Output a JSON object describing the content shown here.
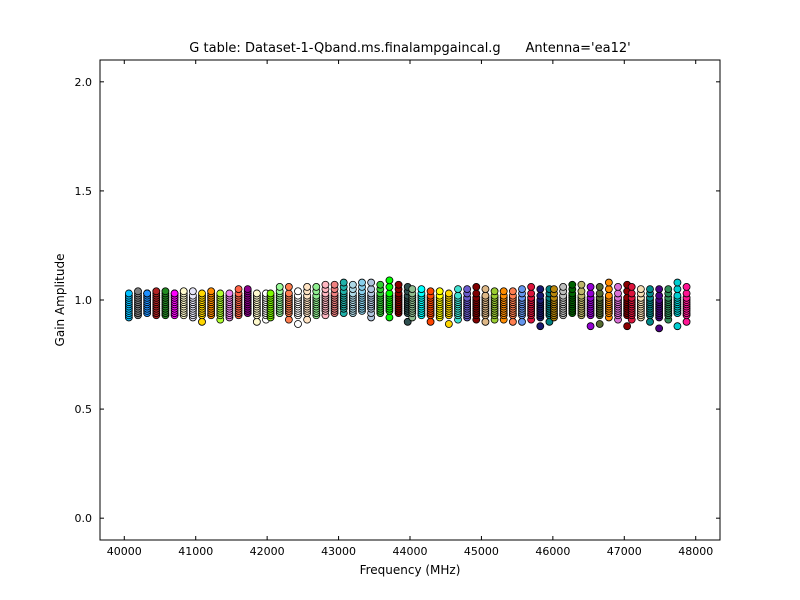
{
  "chart_data": {
    "type": "scatter",
    "title": "G table: Dataset-1-Qband.ms.finalampgaincal.g      Antenna='ea12'",
    "xlabel": "Frequency (MHz)",
    "ylabel": "Gain Amplitude",
    "xlim": [
      39660,
      48340
    ],
    "ylim": [
      -0.1,
      2.1
    ],
    "xticks": [
      40000,
      41000,
      42000,
      43000,
      44000,
      45000,
      46000,
      47000,
      48000
    ],
    "xtick_labels": [
      "40000",
      "41000",
      "42000",
      "43000",
      "44000",
      "45000",
      "46000",
      "47000",
      "48000"
    ],
    "yticks": [
      0.0,
      0.5,
      1.0,
      1.5,
      2.0
    ],
    "ytick_labels": [
      "0.0",
      "0.5",
      "1.0",
      "1.5",
      "2.0"
    ],
    "grid": false,
    "legend": "none",
    "marker_radius_hint": "small circles with black edges",
    "channels_per_spw": 12,
    "series": [
      {
        "x": 40064,
        "color": "#00bfff",
        "y": [
          0.92,
          0.93,
          0.94,
          0.95,
          0.96,
          0.97,
          0.98,
          0.99,
          1.0,
          1.01,
          1.02,
          1.03
        ]
      },
      {
        "x": 40192,
        "color": "#808080",
        "y": [
          0.93,
          0.94,
          0.95,
          0.96,
          0.97,
          0.98,
          0.99,
          1.0,
          1.01,
          1.02,
          1.03,
          1.04
        ]
      },
      {
        "x": 40320,
        "color": "#1e90ff",
        "y": [
          0.94,
          0.95,
          0.96,
          0.97,
          0.98,
          0.99,
          1.0,
          1.01,
          1.02,
          1.03,
          1.03,
          1.03
        ]
      },
      {
        "x": 40448,
        "color": "#b22222",
        "y": [
          0.93,
          0.94,
          0.95,
          0.96,
          0.97,
          0.98,
          0.99,
          1.0,
          1.01,
          1.02,
          1.03,
          1.04
        ]
      },
      {
        "x": 40576,
        "color": "#228b22",
        "y": [
          0.93,
          0.94,
          0.95,
          0.96,
          0.97,
          0.98,
          0.99,
          1.0,
          1.01,
          1.02,
          1.03,
          1.04
        ]
      },
      {
        "x": 40704,
        "color": "#ff00ff",
        "y": [
          0.93,
          0.94,
          0.95,
          0.96,
          0.97,
          0.98,
          0.99,
          1.0,
          1.01,
          1.02,
          1.03,
          1.03
        ]
      },
      {
        "x": 40832,
        "color": "#fffacd",
        "y": [
          0.93,
          0.94,
          0.95,
          0.96,
          0.97,
          0.98,
          0.99,
          1.0,
          1.01,
          1.02,
          1.03,
          1.04
        ]
      },
      {
        "x": 40960,
        "color": "#e6e6fa",
        "y": [
          0.92,
          0.93,
          0.94,
          0.95,
          0.96,
          0.97,
          0.98,
          0.99,
          1.0,
          1.01,
          1.02,
          1.04
        ]
      },
      {
        "x": 41088,
        "color": "#ffd700",
        "y": [
          0.9,
          0.93,
          0.94,
          0.95,
          0.96,
          0.97,
          0.98,
          0.99,
          1.0,
          1.01,
          1.02,
          1.03
        ]
      },
      {
        "x": 41216,
        "color": "#ff8c00",
        "y": [
          0.93,
          0.94,
          0.95,
          0.96,
          0.97,
          0.98,
          0.99,
          1.0,
          1.01,
          1.02,
          1.03,
          1.04
        ]
      },
      {
        "x": 41344,
        "color": "#adff2f",
        "y": [
          0.91,
          0.93,
          0.94,
          0.95,
          0.96,
          0.97,
          0.98,
          0.99,
          1.0,
          1.01,
          1.02,
          1.03
        ]
      },
      {
        "x": 41472,
        "color": "#ee82ee",
        "y": [
          0.92,
          0.93,
          0.94,
          0.95,
          0.96,
          0.97,
          0.98,
          0.99,
          1.0,
          1.01,
          1.02,
          1.03
        ]
      },
      {
        "x": 41600,
        "color": "#ff6347",
        "y": [
          0.93,
          0.94,
          0.95,
          0.96,
          0.97,
          0.98,
          0.99,
          1.0,
          1.01,
          1.02,
          1.03,
          1.05
        ]
      },
      {
        "x": 41728,
        "color": "#8b008b",
        "y": [
          0.94,
          0.95,
          0.96,
          0.97,
          0.98,
          0.99,
          1.0,
          1.01,
          1.02,
          1.03,
          1.04,
          1.05
        ]
      },
      {
        "x": 41856,
        "color": "#fffacd",
        "y": [
          0.9,
          0.93,
          0.94,
          0.95,
          0.96,
          0.97,
          0.98,
          0.99,
          1.0,
          1.01,
          1.02,
          1.03
        ]
      },
      {
        "x": 41984,
        "color": "#ffffff",
        "y": [
          0.91,
          0.93,
          0.94,
          0.95,
          0.96,
          0.97,
          0.98,
          0.99,
          1.0,
          1.01,
          1.02,
          1.03
        ]
      },
      {
        "x": 42048,
        "color": "#7cfc00",
        "y": [
          0.92,
          0.93,
          0.94,
          0.95,
          0.96,
          0.97,
          0.98,
          0.99,
          1.0,
          1.01,
          1.02,
          1.03
        ]
      },
      {
        "x": 42176,
        "color": "#98fb98",
        "y": [
          0.94,
          0.95,
          0.96,
          0.97,
          0.98,
          0.99,
          1.0,
          1.01,
          1.02,
          1.03,
          1.04,
          1.06
        ]
      },
      {
        "x": 42304,
        "color": "#ff7f50",
        "y": [
          0.91,
          0.94,
          0.95,
          0.96,
          0.97,
          0.98,
          0.99,
          1.0,
          1.01,
          1.02,
          1.03,
          1.06
        ]
      },
      {
        "x": 42432,
        "color": "#ffffff",
        "y": [
          0.89,
          0.93,
          0.94,
          0.95,
          0.96,
          0.97,
          0.98,
          0.99,
          1.0,
          1.01,
          1.02,
          1.04
        ]
      },
      {
        "x": 42560,
        "color": "#ffe4c4",
        "y": [
          0.91,
          0.94,
          0.95,
          0.96,
          0.97,
          0.98,
          0.99,
          1.0,
          1.01,
          1.02,
          1.04,
          1.06
        ]
      },
      {
        "x": 42688,
        "color": "#90ee90",
        "y": [
          0.93,
          0.94,
          0.95,
          0.96,
          0.97,
          0.98,
          0.99,
          1.0,
          1.01,
          1.02,
          1.04,
          1.06
        ]
      },
      {
        "x": 42816,
        "color": "#ffb6c1",
        "y": [
          0.93,
          0.95,
          0.96,
          0.97,
          0.98,
          0.99,
          1.0,
          1.01,
          1.02,
          1.03,
          1.05,
          1.07
        ]
      },
      {
        "x": 42944,
        "color": "#f08080",
        "y": [
          0.94,
          0.95,
          0.96,
          0.97,
          0.98,
          0.99,
          1.0,
          1.01,
          1.02,
          1.03,
          1.05,
          1.07
        ]
      },
      {
        "x": 43072,
        "color": "#20b2aa",
        "y": [
          0.94,
          0.96,
          0.97,
          0.98,
          0.99,
          1.0,
          1.01,
          1.02,
          1.03,
          1.04,
          1.06,
          1.08
        ]
      },
      {
        "x": 43200,
        "color": "#add8e6",
        "y": [
          0.94,
          0.95,
          0.96,
          0.97,
          0.98,
          0.99,
          1.0,
          1.01,
          1.02,
          1.03,
          1.05,
          1.07
        ]
      },
      {
        "x": 43328,
        "color": "#87ceeb",
        "y": [
          0.95,
          0.96,
          0.97,
          0.98,
          0.99,
          1.0,
          1.01,
          1.02,
          1.03,
          1.04,
          1.06,
          1.08
        ]
      },
      {
        "x": 43456,
        "color": "#b0c4de",
        "y": [
          0.92,
          0.94,
          0.96,
          0.97,
          0.98,
          0.99,
          1.0,
          1.01,
          1.02,
          1.03,
          1.05,
          1.08
        ]
      },
      {
        "x": 43584,
        "color": "#32cd32",
        "y": [
          0.94,
          0.95,
          0.96,
          0.97,
          0.98,
          0.99,
          1.0,
          1.01,
          1.02,
          1.03,
          1.05,
          1.07
        ]
      },
      {
        "x": 43712,
        "color": "#00ff00",
        "y": [
          0.92,
          0.95,
          0.96,
          0.97,
          0.98,
          0.99,
          1.0,
          1.01,
          1.02,
          1.03,
          1.06,
          1.09
        ]
      },
      {
        "x": 43840,
        "color": "#8b0000",
        "y": [
          0.94,
          0.95,
          0.96,
          0.97,
          0.98,
          0.99,
          1.0,
          1.01,
          1.02,
          1.03,
          1.05,
          1.07
        ]
      },
      {
        "x": 43968,
        "color": "#2f4f4f",
        "y": [
          0.9,
          0.94,
          0.95,
          0.96,
          0.97,
          0.98,
          0.99,
          1.0,
          1.01,
          1.02,
          1.04,
          1.06
        ]
      },
      {
        "x": 44032,
        "color": "#8fbc8f",
        "y": [
          0.92,
          0.94,
          0.95,
          0.96,
          0.97,
          0.98,
          0.99,
          1.0,
          1.01,
          1.02,
          1.03,
          1.05
        ]
      },
      {
        "x": 44160,
        "color": "#00ffff",
        "y": [
          0.93,
          0.94,
          0.95,
          0.96,
          0.97,
          0.98,
          0.99,
          1.0,
          1.01,
          1.02,
          1.03,
          1.05
        ]
      },
      {
        "x": 44288,
        "color": "#ff4500",
        "y": [
          0.9,
          0.93,
          0.94,
          0.95,
          0.96,
          0.97,
          0.98,
          0.99,
          1.0,
          1.01,
          1.02,
          1.04
        ]
      },
      {
        "x": 44416,
        "color": "#ffff00",
        "y": [
          0.92,
          0.93,
          0.94,
          0.95,
          0.96,
          0.97,
          0.98,
          0.99,
          1.0,
          1.01,
          1.02,
          1.04
        ]
      },
      {
        "x": 44544,
        "color": "#ffd700",
        "y": [
          0.89,
          0.93,
          0.94,
          0.95,
          0.96,
          0.97,
          0.98,
          0.99,
          1.0,
          1.01,
          1.02,
          1.03
        ]
      },
      {
        "x": 44672,
        "color": "#40e0d0",
        "y": [
          0.91,
          0.93,
          0.94,
          0.95,
          0.96,
          0.97,
          0.98,
          0.99,
          1.0,
          1.01,
          1.02,
          1.05
        ]
      },
      {
        "x": 44800,
        "color": "#6a5acd",
        "y": [
          0.92,
          0.93,
          0.94,
          0.95,
          0.96,
          0.97,
          0.98,
          0.99,
          1.0,
          1.01,
          1.03,
          1.05
        ]
      },
      {
        "x": 44928,
        "color": "#800000",
        "y": [
          0.91,
          0.93,
          0.94,
          0.95,
          0.96,
          0.97,
          0.98,
          0.99,
          1.0,
          1.01,
          1.03,
          1.06
        ]
      },
      {
        "x": 45056,
        "color": "#deb887",
        "y": [
          0.9,
          0.93,
          0.94,
          0.95,
          0.96,
          0.97,
          0.98,
          0.99,
          1.0,
          1.01,
          1.02,
          1.05
        ]
      },
      {
        "x": 45184,
        "color": "#9acd32",
        "y": [
          0.91,
          0.93,
          0.94,
          0.95,
          0.96,
          0.97,
          0.98,
          0.99,
          1.0,
          1.01,
          1.02,
          1.04
        ]
      },
      {
        "x": 45312,
        "color": "#ff8c00",
        "y": [
          0.91,
          0.93,
          0.94,
          0.95,
          0.96,
          0.97,
          0.98,
          0.99,
          1.0,
          1.01,
          1.02,
          1.04
        ]
      },
      {
        "x": 45440,
        "color": "#ff7f50",
        "y": [
          0.9,
          0.93,
          0.94,
          0.95,
          0.96,
          0.97,
          0.98,
          0.99,
          1.0,
          1.01,
          1.02,
          1.04
        ]
      },
      {
        "x": 45568,
        "color": "#6495ed",
        "y": [
          0.9,
          0.93,
          0.94,
          0.95,
          0.96,
          0.97,
          0.98,
          0.99,
          1.0,
          1.01,
          1.03,
          1.05
        ]
      },
      {
        "x": 45696,
        "color": "#dc143c",
        "y": [
          0.91,
          0.93,
          0.94,
          0.95,
          0.96,
          0.97,
          0.98,
          0.99,
          1.0,
          1.01,
          1.03,
          1.06
        ]
      },
      {
        "x": 45824,
        "color": "#191970",
        "y": [
          0.88,
          0.92,
          0.93,
          0.94,
          0.95,
          0.96,
          0.97,
          0.98,
          0.99,
          1.0,
          1.02,
          1.05
        ]
      },
      {
        "x": 45952,
        "color": "#008080",
        "y": [
          0.9,
          0.93,
          0.94,
          0.95,
          0.96,
          0.97,
          0.98,
          0.99,
          1.0,
          1.01,
          1.03,
          1.05
        ]
      },
      {
        "x": 46016,
        "color": "#b8860b",
        "y": [
          0.92,
          0.93,
          0.94,
          0.95,
          0.96,
          0.97,
          0.98,
          0.99,
          1.0,
          1.01,
          1.03,
          1.05
        ]
      },
      {
        "x": 46144,
        "color": "#c0c0c0",
        "y": [
          0.93,
          0.94,
          0.95,
          0.96,
          0.97,
          0.98,
          0.99,
          1.0,
          1.01,
          1.02,
          1.04,
          1.06
        ]
      },
      {
        "x": 46272,
        "color": "#006400",
        "y": [
          0.94,
          0.95,
          0.96,
          0.97,
          0.98,
          0.99,
          1.0,
          1.01,
          1.02,
          1.03,
          1.05,
          1.07
        ]
      },
      {
        "x": 46400,
        "color": "#bdb76b",
        "y": [
          0.93,
          0.94,
          0.95,
          0.96,
          0.97,
          0.98,
          0.99,
          1.0,
          1.01,
          1.02,
          1.04,
          1.07
        ]
      },
      {
        "x": 46528,
        "color": "#9400d3",
        "y": [
          0.88,
          0.93,
          0.94,
          0.95,
          0.96,
          0.97,
          0.98,
          0.99,
          1.0,
          1.01,
          1.03,
          1.06
        ]
      },
      {
        "x": 46656,
        "color": "#556b2f",
        "y": [
          0.89,
          0.93,
          0.94,
          0.95,
          0.96,
          0.97,
          0.98,
          0.99,
          1.0,
          1.01,
          1.03,
          1.06
        ]
      },
      {
        "x": 46784,
        "color": "#ff8c00",
        "y": [
          0.92,
          0.94,
          0.95,
          0.96,
          0.97,
          0.98,
          0.99,
          1.0,
          1.01,
          1.02,
          1.05,
          1.08
        ]
      },
      {
        "x": 46912,
        "color": "#da70d6",
        "y": [
          0.91,
          0.93,
          0.94,
          0.95,
          0.96,
          0.97,
          0.98,
          0.99,
          1.0,
          1.01,
          1.03,
          1.06
        ]
      },
      {
        "x": 47040,
        "color": "#8b0000",
        "y": [
          0.88,
          0.93,
          0.94,
          0.95,
          0.96,
          0.97,
          0.98,
          0.99,
          1.0,
          1.01,
          1.04,
          1.07
        ]
      },
      {
        "x": 47104,
        "color": "#dc143c",
        "y": [
          0.91,
          0.93,
          0.94,
          0.95,
          0.96,
          0.97,
          0.98,
          0.99,
          1.0,
          1.01,
          1.03,
          1.06
        ]
      },
      {
        "x": 47232,
        "color": "#f5deb3",
        "y": [
          0.92,
          0.93,
          0.94,
          0.95,
          0.96,
          0.97,
          0.98,
          0.99,
          1.0,
          1.01,
          1.03,
          1.05
        ]
      },
      {
        "x": 47360,
        "color": "#008b8b",
        "y": [
          0.9,
          0.93,
          0.94,
          0.95,
          0.96,
          0.97,
          0.98,
          0.99,
          1.0,
          1.01,
          1.03,
          1.05
        ]
      },
      {
        "x": 47488,
        "color": "#4b0082",
        "y": [
          0.87,
          0.92,
          0.93,
          0.94,
          0.95,
          0.96,
          0.97,
          0.98,
          0.99,
          1.0,
          1.02,
          1.05
        ]
      },
      {
        "x": 47616,
        "color": "#2e8b57",
        "y": [
          0.91,
          0.93,
          0.94,
          0.95,
          0.96,
          0.97,
          0.98,
          0.99,
          1.0,
          1.01,
          1.03,
          1.05
        ]
      },
      {
        "x": 47744,
        "color": "#00ced1",
        "y": [
          0.88,
          0.94,
          0.95,
          0.96,
          0.97,
          0.98,
          0.99,
          1.0,
          1.01,
          1.02,
          1.05,
          1.08
        ]
      },
      {
        "x": 47872,
        "color": "#ff1493",
        "y": [
          0.9,
          0.93,
          0.94,
          0.95,
          0.96,
          0.97,
          0.98,
          0.99,
          1.0,
          1.01,
          1.03,
          1.06
        ]
      }
    ]
  }
}
